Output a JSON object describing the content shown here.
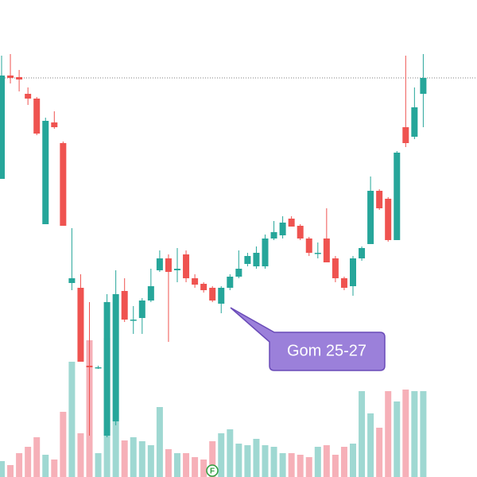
{
  "chart_data": {
    "type": "candlestick",
    "up_color": "#26a69a",
    "down_color": "#ef5350",
    "volume_up_color": "#9fd8d2",
    "volume_down_color": "#f6b0b8",
    "ylim": [
      0,
      600
    ],
    "y2lim": [
      0,
      600
    ],
    "price_line": 502,
    "annotation": "Gom 25-27",
    "marker": "F",
    "series": [
      {
        "name": "open",
        "values": [
          375,
          505,
          503,
          482,
          476,
          318,
          446,
          420,
          244,
          238,
          140,
          138,
          52,
          70,
          234,
          198,
          200,
          222,
          260,
          275,
          260,
          280,
          250,
          243,
          238,
          218,
          238,
          252,
          268,
          265,
          265,
          300,
          304,
          325,
          316,
          300,
          282,
          300,
          275,
          250,
          240,
          275,
          293,
          360,
          350,
          298,
          440,
          428,
          482
        ]
      },
      {
        "name": "high",
        "values": [
          530,
          532,
          512,
          490,
          478,
          452,
          460,
          422,
          313,
          255,
          220,
          140,
          230,
          260,
          250,
          215,
          225,
          262,
          285,
          280,
          288,
          285,
          255,
          245,
          240,
          240,
          255,
          285,
          282,
          290,
          305,
          322,
          328,
          328,
          318,
          302,
          295,
          338,
          278,
          252,
          278,
          290,
          378,
          362,
          352,
          410,
          530,
          490,
          532
        ]
      },
      {
        "name": "low",
        "values": [
          375,
          495,
          485,
          468,
          430,
          318,
          438,
          316,
          235,
          145,
          52,
          136,
          50,
          65,
          195,
          180,
          180,
          220,
          258,
          170,
          245,
          245,
          238,
          232,
          220,
          206,
          235,
          250,
          265,
          262,
          262,
          298,
          300,
          315,
          298,
          278,
          275,
          270,
          245,
          235,
          228,
          272,
          293,
          336,
          296,
          298,
          415,
          425,
          440
        ]
      },
      {
        "name": "close",
        "values": [
          505,
          502,
          500,
          476,
          432,
          448,
          440,
          316,
          250,
          145,
          138,
          138,
          220,
          230,
          198,
          198,
          222,
          240,
          275,
          258,
          262,
          250,
          242,
          235,
          222,
          238,
          252,
          262,
          278,
          282,
          300,
          308,
          320,
          315,
          300,
          282,
          282,
          270,
          250,
          238,
          275,
          288,
          360,
          338,
          298,
          408,
          420,
          465,
          502
        ]
      },
      {
        "name": "volume",
        "values": [
          20,
          15,
          30,
          38,
          50,
          28,
          22,
          82,
          145,
          55,
          172,
          30,
          175,
          70,
          46,
          50,
          45,
          40,
          88,
          35,
          30,
          30,
          25,
          22,
          45,
          55,
          60,
          42,
          40,
          48,
          40,
          38,
          30,
          30,
          28,
          25,
          38,
          40,
          28,
          38,
          42,
          108,
          80,
          62,
          108,
          95,
          110,
          108,
          108
        ]
      }
    ]
  }
}
